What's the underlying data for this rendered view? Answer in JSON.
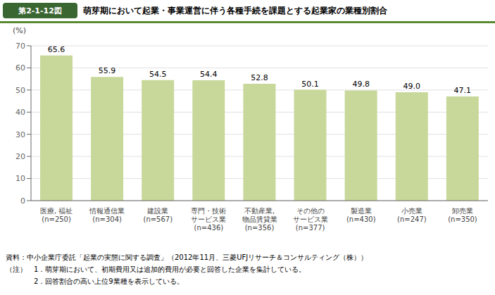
{
  "chart_data": {
    "type": "bar",
    "title": "萌芽期において起業・事業運営に伴う各種手続を課題とする起業家の業種別割合",
    "ylabel": "(%)",
    "categories": [
      "医療, 福祉\n(n=250)",
      "情報通信業\n(n=304)",
      "建設業\n(n=567)",
      "専門・技術\nサービス業\n(n=436)",
      "不動産業,\n物品賃貸業\n(n=356)",
      "その他の\nサービス業\n(n=377)",
      "製造業\n(n=430)",
      "小売業\n(n=247)",
      "卸売業\n(n=350)"
    ],
    "values": [
      65.6,
      55.9,
      54.5,
      54.4,
      52.8,
      50.1,
      49.8,
      49.0,
      47.1
    ],
    "value_labels": [
      "65.6",
      "55.9",
      "54.5",
      "54.4",
      "52.8",
      "50.1",
      "49.8",
      "49.0",
      "47.1"
    ],
    "data_labels": true,
    "color": "#c8d89a",
    "ylim": [
      0,
      70
    ],
    "yticks": [
      0,
      10,
      20,
      30,
      40,
      50,
      60,
      70
    ],
    "grid": true,
    "annotations": [
      "第2-1-12図",
      "資料：中小企業庁委託「起業の実態に関する調査」（2012年11月、三菱UFJリサーチ＆コンサルティング（株））",
      "（注）　1．萌芽期において、初期費用又は追加的費用が必要と回答した企業を集計している。",
      "　　　　2．回答割合の高い上位9業種を表示している。"
    ]
  }
}
